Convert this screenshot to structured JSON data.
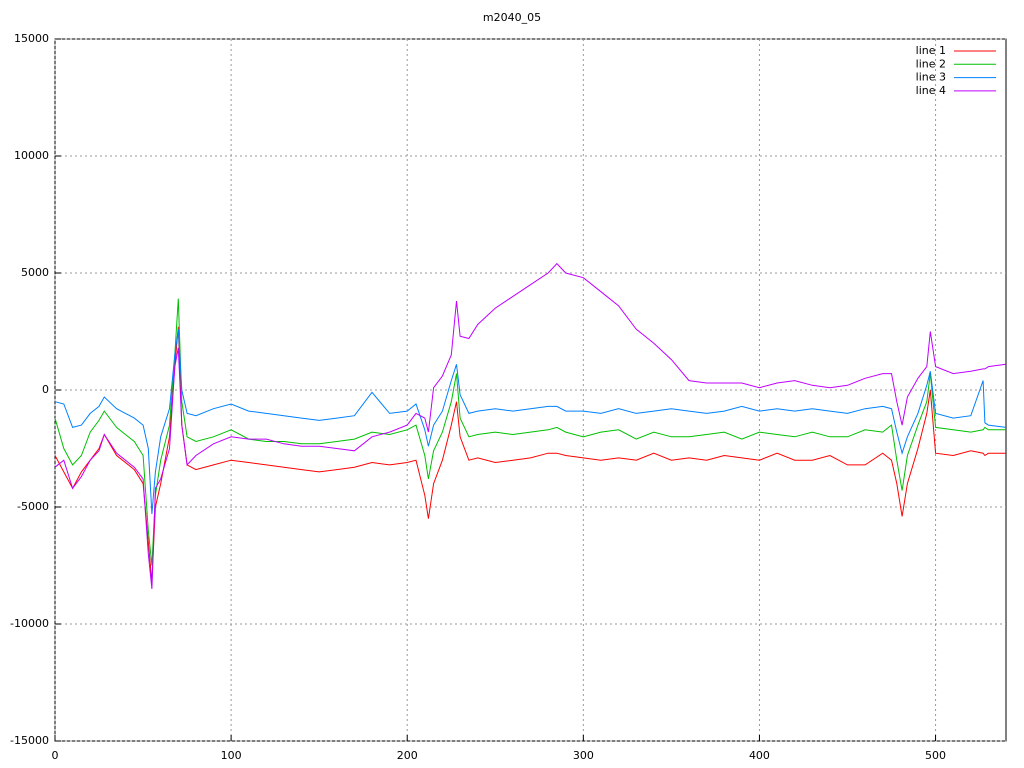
{
  "chart_data": {
    "type": "line",
    "title": "m2040_05",
    "x": [
      0,
      5,
      10,
      15,
      20,
      25,
      28,
      35,
      40,
      45,
      50,
      53,
      55,
      57,
      60,
      65,
      68,
      70,
      72,
      75,
      80,
      90,
      100,
      110,
      120,
      130,
      140,
      150,
      160,
      170,
      180,
      190,
      200,
      205,
      210,
      212,
      215,
      220,
      225,
      228,
      230,
      235,
      240,
      250,
      260,
      270,
      280,
      285,
      290,
      300,
      310,
      320,
      330,
      340,
      350,
      360,
      370,
      380,
      390,
      400,
      410,
      420,
      430,
      440,
      450,
      460,
      470,
      475,
      478,
      481,
      484,
      490,
      495,
      497,
      500,
      510,
      520,
      527,
      528,
      530,
      540
    ],
    "series": [
      {
        "name": "line 1",
        "color": "#ff0000",
        "values": [
          -2800,
          -3500,
          -4200,
          -3500,
          -3000,
          -2500,
          -1900,
          -2800,
          -3100,
          -3400,
          -4000,
          -6500,
          -8200,
          -5000,
          -4000,
          -2000,
          1000,
          2700,
          -1500,
          -3200,
          -3400,
          -3200,
          -3000,
          -3100,
          -3200,
          -3300,
          -3400,
          -3500,
          -3400,
          -3300,
          -3100,
          -3200,
          -3100,
          -3000,
          -4500,
          -5500,
          -4000,
          -3000,
          -1500,
          -500,
          -2000,
          -3000,
          -2900,
          -3100,
          -3000,
          -2900,
          -2700,
          -2700,
          -2800,
          -2900,
          -3000,
          -2900,
          -3000,
          -2700,
          -3000,
          -2900,
          -3000,
          -2800,
          -2900,
          -3000,
          -2700,
          -3000,
          -3000,
          -2800,
          -3200,
          -3200,
          -2700,
          -3000,
          -4000,
          -5400,
          -4000,
          -2500,
          -1000,
          0,
          -2700,
          -2800,
          -2600,
          -2700,
          -2800,
          -2700,
          -2700
        ]
      },
      {
        "name": "line 2",
        "color": "#00c000",
        "values": [
          -1200,
          -2500,
          -3200,
          -2800,
          -1800,
          -1300,
          -900,
          -1600,
          -1900,
          -2200,
          -2800,
          -6000,
          -7500,
          -4500,
          -3000,
          -1500,
          1500,
          3900,
          -500,
          -2000,
          -2200,
          -2000,
          -1700,
          -2100,
          -2200,
          -2200,
          -2300,
          -2300,
          -2200,
          -2100,
          -1800,
          -1900,
          -1700,
          -1500,
          -2800,
          -3800,
          -2600,
          -1800,
          -500,
          700,
          -1200,
          -2000,
          -1900,
          -1800,
          -1900,
          -1800,
          -1700,
          -1600,
          -1800,
          -2000,
          -1800,
          -1700,
          -2100,
          -1800,
          -2000,
          -2000,
          -1900,
          -1800,
          -2100,
          -1800,
          -1900,
          -2000,
          -1800,
          -2000,
          -2000,
          -1700,
          -1800,
          -1500,
          -3000,
          -4300,
          -2800,
          -1500,
          -500,
          700,
          -1600,
          -1700,
          -1800,
          -1700,
          -1600,
          -1700,
          -1700
        ]
      },
      {
        "name": "line 3",
        "color": "#0080ff",
        "values": [
          -500,
          -600,
          -1600,
          -1500,
          -1000,
          -700,
          -300,
          -800,
          -1000,
          -1200,
          -1500,
          -2500,
          -5300,
          -3500,
          -2000,
          -800,
          1500,
          2600,
          0,
          -1000,
          -1100,
          -800,
          -600,
          -900,
          -1000,
          -1100,
          -1200,
          -1300,
          -1200,
          -1100,
          -100,
          -1000,
          -900,
          -600,
          -1700,
          -2400,
          -1500,
          -900,
          400,
          1100,
          -200,
          -1000,
          -900,
          -800,
          -900,
          -800,
          -700,
          -700,
          -900,
          -900,
          -1000,
          -800,
          -1000,
          -900,
          -800,
          -900,
          -1000,
          -900,
          -700,
          -900,
          -800,
          -900,
          -800,
          -900,
          -1000,
          -800,
          -700,
          -800,
          -1800,
          -2700,
          -2000,
          -1000,
          200,
          800,
          -1000,
          -1200,
          -1100,
          400,
          -1400,
          -1500,
          -1600
        ]
      },
      {
        "name": "line 4",
        "color": "#c000ff",
        "values": [
          -3300,
          -3000,
          -4200,
          -3700,
          -3000,
          -2600,
          -1900,
          -2700,
          -3000,
          -3300,
          -3800,
          -7000,
          -8500,
          -4200,
          -3800,
          -2500,
          1000,
          1800,
          -1500,
          -3200,
          -2800,
          -2300,
          -2000,
          -2100,
          -2100,
          -2300,
          -2400,
          -2400,
          -2500,
          -2600,
          -2000,
          -1800,
          -1500,
          -1000,
          -1200,
          -1800,
          100,
          600,
          1500,
          3800,
          2300,
          2200,
          2800,
          3500,
          4000,
          4500,
          5000,
          5400,
          5000,
          4800,
          4200,
          3600,
          2600,
          2000,
          1300,
          400,
          300,
          300,
          300,
          100,
          300,
          400,
          200,
          100,
          200,
          500,
          700,
          700,
          -500,
          -1500,
          -300,
          500,
          1000,
          2500,
          1000,
          700,
          800,
          900,
          900,
          1000,
          1100
        ]
      }
    ],
    "xlim": [
      0,
      540
    ],
    "xticks": [
      0,
      100,
      200,
      300,
      400,
      500
    ],
    "ylim": [
      -15000,
      15000
    ],
    "yticks": [
      -15000,
      -10000,
      -5000,
      0,
      5000,
      10000,
      15000
    ],
    "grid": true,
    "legend": "top-right"
  }
}
